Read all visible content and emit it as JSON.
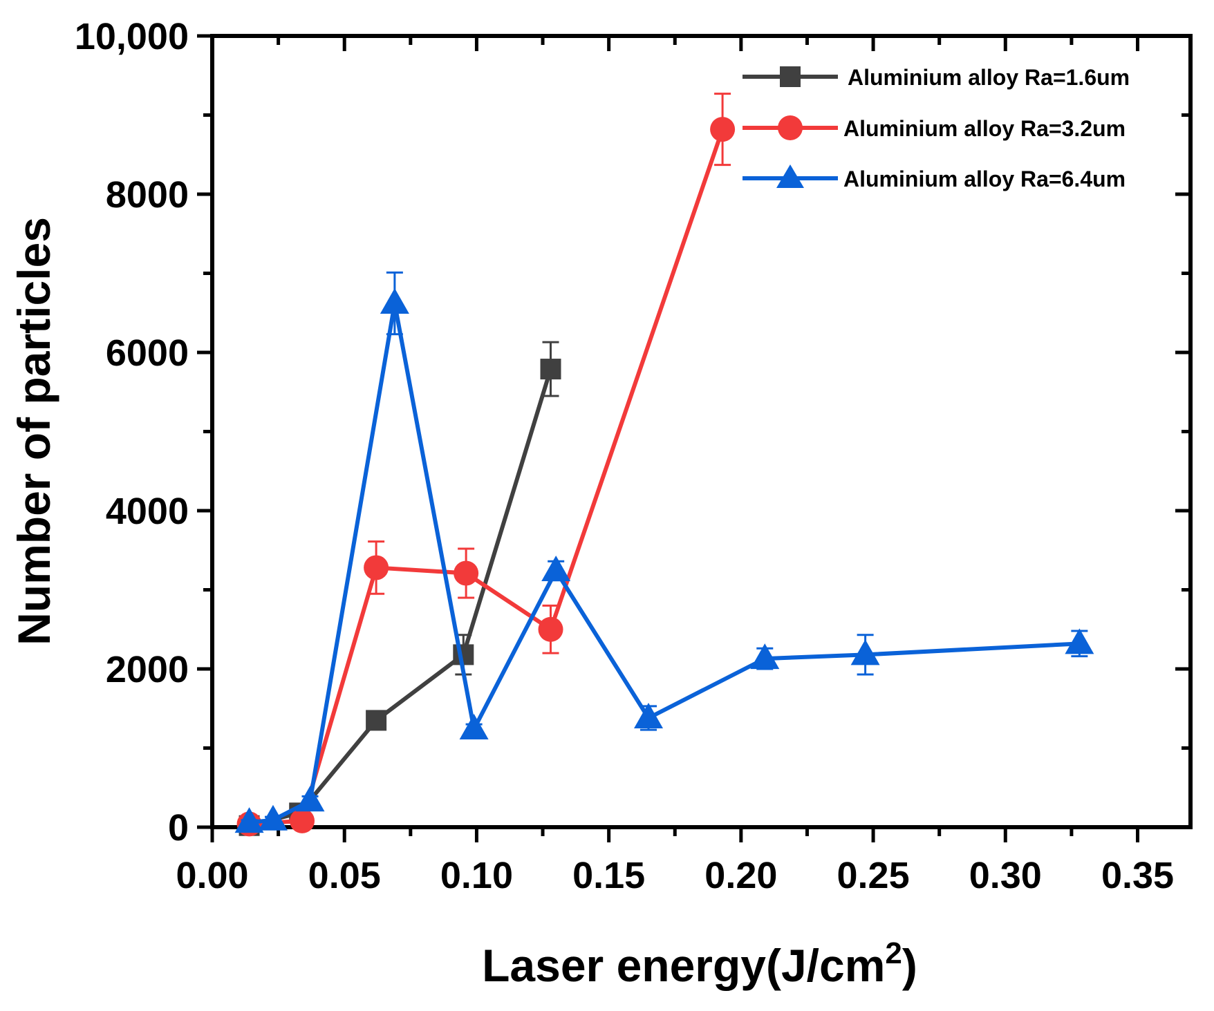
{
  "chart_data": {
    "type": "line",
    "title": "",
    "xlabel": "Laser energy(J/cm",
    "xlabel_superscript": "2",
    "xlabel_suffix": ")",
    "ylabel": "Number of particles",
    "xlim": [
      0.0,
      0.37
    ],
    "ylim": [
      0,
      10000
    ],
    "x_ticks": [
      0.0,
      0.05,
      0.1,
      0.15,
      0.2,
      0.25,
      0.3,
      0.35
    ],
    "x_tick_labels": [
      "0.00",
      "0.05",
      "0.10",
      "0.15",
      "0.20",
      "0.25",
      "0.30",
      "0.35"
    ],
    "y_ticks": [
      0,
      2000,
      4000,
      6000,
      8000,
      10000
    ],
    "y_tick_labels": [
      "0",
      "2000",
      "4000",
      "6000",
      "8000",
      "10,000"
    ],
    "legend_position": "top-right",
    "grid": false,
    "series": [
      {
        "name": "Aluminium alloy Ra=1.6um",
        "color": "#404040",
        "marker": "square",
        "x": [
          0.014,
          0.033,
          0.062,
          0.095,
          0.128
        ],
        "y": [
          20,
          180,
          1350,
          2180,
          5790
        ],
        "err": [
          0,
          40,
          60,
          250,
          340
        ]
      },
      {
        "name": "Aluminium alloy Ra=3.2um",
        "color": "#f23a3a",
        "marker": "circle",
        "x": [
          0.014,
          0.034,
          0.062,
          0.096,
          0.128,
          0.193
        ],
        "y": [
          40,
          80,
          3280,
          3210,
          2500,
          8820
        ],
        "err": [
          0,
          40,
          330,
          310,
          300,
          450
        ]
      },
      {
        "name": "Aluminium alloy Ra=6.4um",
        "color": "#0a62d8",
        "marker": "triangle",
        "x": [
          0.014,
          0.023,
          0.037,
          0.069,
          0.099,
          0.13,
          0.165,
          0.209,
          0.247,
          0.328
        ],
        "y": [
          60,
          90,
          330,
          6620,
          1240,
          3240,
          1380,
          2130,
          2180,
          2320
        ],
        "err": [
          30,
          40,
          60,
          390,
          60,
          120,
          150,
          130,
          250,
          160
        ]
      }
    ]
  }
}
